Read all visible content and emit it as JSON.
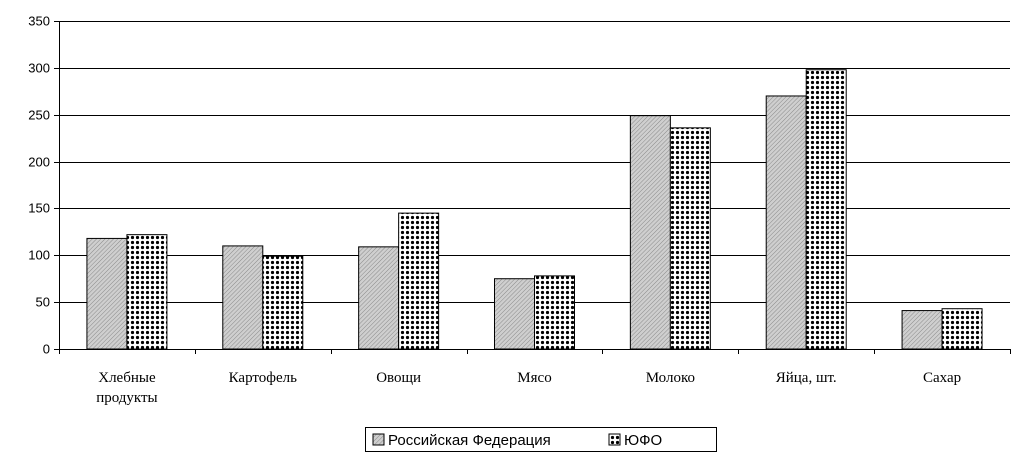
{
  "chart_data": {
    "type": "bar",
    "categories": [
      [
        "Хлебные",
        "продукты"
      ],
      [
        "Картофель"
      ],
      [
        "Овощи"
      ],
      [
        "Мясо"
      ],
      [
        "Молоко"
      ],
      [
        "Яйца, шт."
      ],
      [
        "Сахар"
      ]
    ],
    "series": [
      {
        "name": "Российская Федерация",
        "values": [
          118,
          110,
          109,
          75,
          249,
          270,
          41
        ]
      },
      {
        "name": "ЮФО",
        "values": [
          122,
          99,
          145,
          78,
          236,
          298,
          43
        ]
      }
    ],
    "ylim": [
      0,
      350
    ],
    "yticks": [
      0,
      50,
      100,
      150,
      200,
      250,
      300,
      350
    ],
    "grid": true,
    "legend_position": "bottom-center",
    "colors": {
      "grid": "#000000",
      "series_1_fill": "#c8c8c8",
      "series_2_fill": "#ffffff",
      "dot": "#000000"
    }
  }
}
